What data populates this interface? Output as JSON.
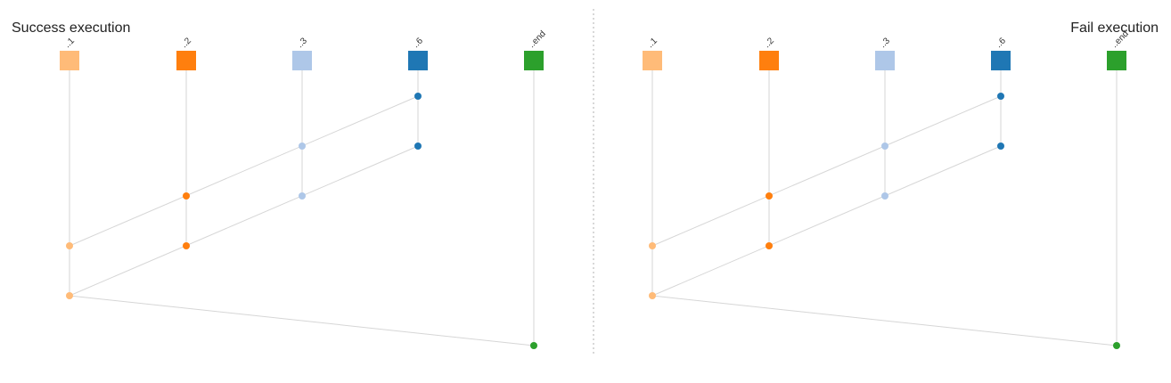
{
  "panels": [
    {
      "id": "success",
      "title": "Success execution",
      "title_align": "left",
      "nodes": [
        {
          "id": "1",
          "label": "..1",
          "color": "#ffbb78"
        },
        {
          "id": "2",
          "label": "..2",
          "color": "#ff7f0e"
        },
        {
          "id": "3",
          "label": "..3",
          "color": "#aec7e8"
        },
        {
          "id": "6",
          "label": "..6",
          "color": "#1f77b4"
        },
        {
          "id": "end",
          "label": "..end",
          "color": "#2ca02c"
        }
      ]
    },
    {
      "id": "fail",
      "title": "Fail execution",
      "title_align": "right",
      "nodes": [
        {
          "id": "1",
          "label": "..1",
          "color": "#ffbb78"
        },
        {
          "id": "2",
          "label": "..2",
          "color": "#ff7f0e"
        },
        {
          "id": "3",
          "label": "..3",
          "color": "#aec7e8"
        },
        {
          "id": "6",
          "label": "..6",
          "color": "#1f77b4"
        },
        {
          "id": "end",
          "label": "..end",
          "color": "#2ca02c"
        }
      ]
    }
  ],
  "events": [
    {
      "node": "6",
      "step": 1
    },
    {
      "node": "3",
      "step": 2
    },
    {
      "node": "6",
      "step": 2
    },
    {
      "node": "2",
      "step": 3
    },
    {
      "node": "3",
      "step": 3
    },
    {
      "node": "1",
      "step": 4
    },
    {
      "node": "2",
      "step": 4
    },
    {
      "node": "1",
      "step": 5
    },
    {
      "node": "end",
      "step": 6
    }
  ],
  "messages": [
    {
      "from": {
        "node": "1",
        "step": 4
      },
      "to": {
        "node": "6",
        "step": 1
      }
    },
    {
      "from": {
        "node": "1",
        "step": 5
      },
      "to": {
        "node": "6",
        "step": 2
      }
    },
    {
      "from": {
        "node": "1",
        "step": 5
      },
      "to": {
        "node": "end",
        "step": 6
      }
    }
  ]
}
